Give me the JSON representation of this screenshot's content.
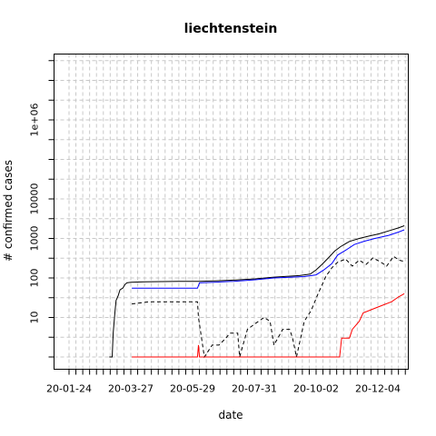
{
  "chart_data": {
    "type": "line",
    "title": "liechtenstein",
    "xlabel": "date",
    "ylabel": "# confirmed cases",
    "y_scale": "log",
    "grid": true,
    "x_tick_labels": [
      "20-01-24",
      "20-03-27",
      "20-05-29",
      "20-07-31",
      "20-10-02",
      "20-12-04"
    ],
    "y_tick_labels": [
      "10",
      "100",
      "1000",
      "10000",
      "1e+06"
    ],
    "colors": {
      "black": "#000000",
      "blue": "#0000ff",
      "red": "#ff0000",
      "grid": "#c8c8c8"
    },
    "series": [
      {
        "color": "black",
        "dash": "solid",
        "points": [
          [
            "2020-03-05",
            1
          ],
          [
            "2020-03-08",
            1
          ],
          [
            "2020-03-09",
            4
          ],
          [
            "2020-03-11",
            15
          ],
          [
            "2020-03-12",
            27
          ],
          [
            "2020-03-14",
            35
          ],
          [
            "2020-03-16",
            50
          ],
          [
            "2020-03-19",
            56
          ],
          [
            "2020-03-21",
            68
          ],
          [
            "2020-03-23",
            75
          ],
          [
            "2020-03-27",
            78
          ],
          [
            "2020-04-10",
            80
          ],
          [
            "2020-05-15",
            82
          ],
          [
            "2020-06-04",
            82
          ],
          [
            "2020-06-20",
            84
          ],
          [
            "2020-07-10",
            88
          ],
          [
            "2020-08-01",
            95
          ],
          [
            "2020-08-20",
            105
          ],
          [
            "2020-09-15",
            115
          ],
          [
            "2020-09-26",
            125
          ],
          [
            "2020-10-02",
            160
          ],
          [
            "2020-10-08",
            220
          ],
          [
            "2020-10-15",
            330
          ],
          [
            "2020-10-21",
            480
          ],
          [
            "2020-10-27",
            620
          ],
          [
            "2020-11-05",
            840
          ],
          [
            "2020-11-15",
            1000
          ],
          [
            "2020-11-25",
            1150
          ],
          [
            "2020-12-05",
            1300
          ],
          [
            "2020-12-15",
            1550
          ],
          [
            "2020-12-25",
            1850
          ],
          [
            "2020-12-31",
            2100
          ]
        ]
      },
      {
        "color": "blue",
        "dash": "solid",
        "points": [
          [
            "2020-03-28",
            55
          ],
          [
            "2020-06-03",
            55
          ],
          [
            "2020-06-05",
            75
          ],
          [
            "2020-06-20",
            78
          ],
          [
            "2020-07-10",
            82
          ],
          [
            "2020-08-01",
            90
          ],
          [
            "2020-08-20",
            100
          ],
          [
            "2020-09-20",
            108
          ],
          [
            "2020-10-02",
            120
          ],
          [
            "2020-10-10",
            160
          ],
          [
            "2020-10-18",
            230
          ],
          [
            "2020-10-24",
            380
          ],
          [
            "2020-11-01",
            500
          ],
          [
            "2020-11-10",
            700
          ],
          [
            "2020-11-20",
            850
          ],
          [
            "2020-12-01",
            1000
          ],
          [
            "2020-12-15",
            1200
          ],
          [
            "2020-12-25",
            1450
          ],
          [
            "2020-12-31",
            1650
          ]
        ]
      },
      {
        "color": "black",
        "dash": "dashed",
        "points": [
          [
            "2020-03-28",
            22
          ],
          [
            "2020-04-15",
            25
          ],
          [
            "2020-06-03",
            25
          ],
          [
            "2020-06-04",
            10
          ],
          [
            "2020-06-10",
            1
          ],
          [
            "2020-06-18",
            2
          ],
          [
            "2020-06-25",
            2
          ],
          [
            "2020-07-02",
            3
          ],
          [
            "2020-07-06",
            4
          ],
          [
            "2020-07-14",
            4
          ],
          [
            "2020-07-16",
            1
          ],
          [
            "2020-07-24",
            5
          ],
          [
            "2020-08-01",
            7
          ],
          [
            "2020-08-10",
            10
          ],
          [
            "2020-08-16",
            8
          ],
          [
            "2020-08-20",
            2
          ],
          [
            "2020-08-24",
            3
          ],
          [
            "2020-08-29",
            5
          ],
          [
            "2020-09-05",
            5
          ],
          [
            "2020-09-08",
            3
          ],
          [
            "2020-09-12",
            1
          ],
          [
            "2020-09-20",
            8
          ],
          [
            "2020-09-27",
            15
          ],
          [
            "2020-10-04",
            40
          ],
          [
            "2020-10-12",
            110
          ],
          [
            "2020-10-18",
            180
          ],
          [
            "2020-10-24",
            250
          ],
          [
            "2020-11-01",
            300
          ],
          [
            "2020-11-08",
            200
          ],
          [
            "2020-11-15",
            280
          ],
          [
            "2020-11-22",
            220
          ],
          [
            "2020-11-29",
            320
          ],
          [
            "2020-12-06",
            260
          ],
          [
            "2020-12-13",
            200
          ],
          [
            "2020-12-20",
            350
          ],
          [
            "2020-12-26",
            280
          ],
          [
            "2020-12-31",
            260
          ]
        ]
      },
      {
        "color": "red",
        "dash": "solid",
        "points": [
          [
            "2020-03-28",
            1
          ],
          [
            "2020-06-03",
            1
          ],
          [
            "2020-06-04",
            2
          ],
          [
            "2020-06-05",
            1
          ],
          [
            "2020-10-26",
            1
          ],
          [
            "2020-10-28",
            3
          ],
          [
            "2020-11-05",
            3
          ],
          [
            "2020-11-08",
            5
          ],
          [
            "2020-11-15",
            8
          ],
          [
            "2020-11-19",
            13
          ],
          [
            "2020-11-28",
            16
          ],
          [
            "2020-12-08",
            20
          ],
          [
            "2020-12-18",
            25
          ],
          [
            "2020-12-25",
            33
          ],
          [
            "2020-12-31",
            40
          ]
        ]
      }
    ]
  }
}
